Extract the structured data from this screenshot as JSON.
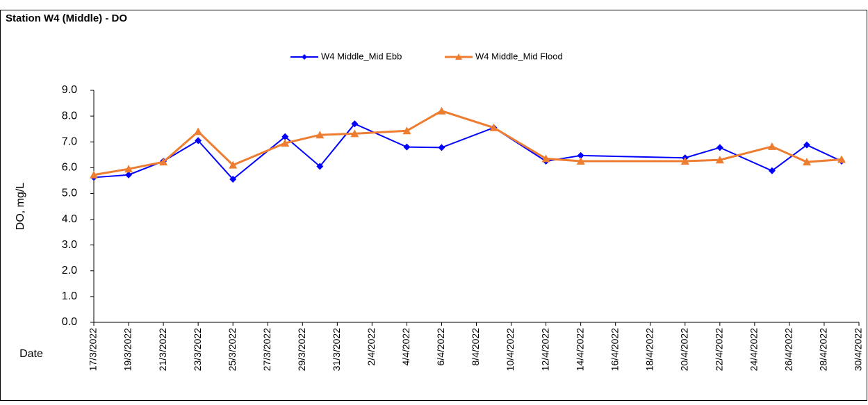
{
  "chart_data": {
    "type": "line",
    "title": "Station W4 (Middle) - DO",
    "y_label": "DO, mg/L",
    "x_label": "Date",
    "x": [
      "17/3/2022",
      "19/3/2022",
      "21/3/2022",
      "23/3/2022",
      "25/3/2022",
      "28/3/2022",
      "30/3/2022",
      "1/4/2022",
      "4/4/2022",
      "6/4/2022",
      "9/4/2022",
      "12/4/2022",
      "14/4/2022",
      "20/4/2022",
      "22/4/2022",
      "25/4/2022",
      "27/4/2022",
      "29/4/2022"
    ],
    "series": [
      {
        "name": "W4 Middle_Mid Ebb",
        "color": "#0000ff",
        "marker": "diamond",
        "values": [
          5.62,
          5.72,
          6.25,
          7.05,
          5.55,
          7.2,
          6.05,
          7.7,
          6.8,
          6.78,
          7.55,
          6.25,
          6.47,
          6.38,
          6.78,
          5.88,
          6.88,
          6.25
        ]
      },
      {
        "name": "W4 Middle_Mid Flood",
        "color": "#ed7d31",
        "marker": "triangle",
        "values": [
          5.72,
          5.95,
          6.22,
          7.4,
          6.1,
          6.95,
          7.27,
          7.32,
          7.43,
          8.2,
          7.55,
          6.35,
          6.25,
          6.25,
          6.3,
          6.82,
          6.22,
          6.32
        ]
      }
    ],
    "xlim": [
      "17/3/2022",
      "30/4/2022"
    ],
    "xticks": [
      "17/3/2022",
      "19/3/2022",
      "21/3/2022",
      "23/3/2022",
      "25/3/2022",
      "27/3/2022",
      "29/3/2022",
      "31/3/2022",
      "2/4/2022",
      "4/4/2022",
      "6/4/2022",
      "8/4/2022",
      "10/4/2022",
      "12/4/2022",
      "14/4/2022",
      "16/4/2022",
      "18/4/2022",
      "20/4/2022",
      "22/4/2022",
      "24/4/2022",
      "26/4/2022",
      "28/4/2022",
      "30/4/2022"
    ],
    "ylim": [
      0,
      9
    ],
    "yticks": [
      {
        "value": 0,
        "label": "0.0"
      },
      {
        "value": 1,
        "label": "1.0"
      },
      {
        "value": 2,
        "label": "2.0"
      },
      {
        "value": 3,
        "label": "3.0"
      },
      {
        "value": 4,
        "label": "4.0"
      },
      {
        "value": 5,
        "label": "5.0"
      },
      {
        "value": 6,
        "label": "6.0"
      },
      {
        "value": 7,
        "label": "7.0"
      },
      {
        "value": 8,
        "label": "8.0"
      },
      {
        "value": 9,
        "label": "9.0"
      }
    ],
    "grid": false,
    "legend": "top"
  }
}
